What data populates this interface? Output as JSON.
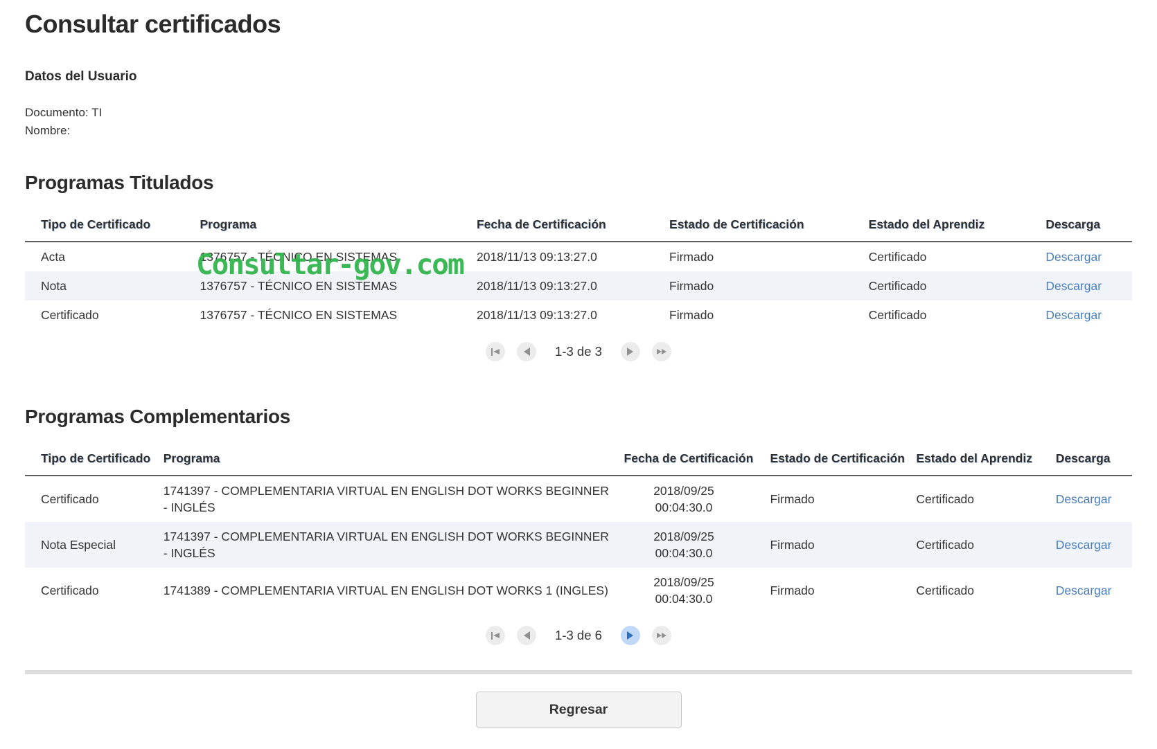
{
  "page": {
    "title": "Consultar certificados",
    "watermark": "Consultar-gov.com"
  },
  "user": {
    "section_title": "Datos del Usuario",
    "documento": "Documento: TI",
    "nombre": "Nombre:"
  },
  "titulados": {
    "section_title": "Programas Titulados",
    "headers": [
      "Tipo de Certificado",
      "Programa",
      "Fecha de Certificación",
      "Estado de Certificación",
      "Estado del Aprendiz",
      "Descarga"
    ],
    "rows": [
      {
        "tipo": "Acta",
        "programa": "1376757 - TÉCNICO EN SISTEMAS",
        "fecha": "2018/11/13 09:13:27.0",
        "estado_certificacion": "Firmado",
        "estado_aprendiz": "Certificado",
        "descarga": "Descargar"
      },
      {
        "tipo": "Nota",
        "programa": "1376757 - TÉCNICO EN SISTEMAS",
        "fecha": "2018/11/13 09:13:27.0",
        "estado_certificacion": "Firmado",
        "estado_aprendiz": "Certificado",
        "descarga": "Descargar"
      },
      {
        "tipo": "Certificado",
        "programa": "1376757 - TÉCNICO EN SISTEMAS",
        "fecha": "2018/11/13 09:13:27.0",
        "estado_certificacion": "Firmado",
        "estado_aprendiz": "Certificado",
        "descarga": "Descargar"
      }
    ],
    "pagination": {
      "label": "1-3 de 3"
    }
  },
  "complementarios": {
    "section_title": "Programas Complementarios",
    "headers": [
      "Tipo de Certificado",
      "Programa",
      "Fecha de Certificación",
      "Estado de Certificación",
      "Estado del Aprendiz",
      "Descarga"
    ],
    "rows": [
      {
        "tipo": "Certificado",
        "programa": "1741397 - COMPLEMENTARIA VIRTUAL EN ENGLISH DOT WORKS BEGINNER - INGLÉS",
        "fecha": "2018/09/25 00:04:30.0",
        "estado_certificacion": "Firmado",
        "estado_aprendiz": "Certificado",
        "descarga": "Descargar"
      },
      {
        "tipo": "Nota Especial",
        "programa": "1741397 - COMPLEMENTARIA VIRTUAL EN ENGLISH DOT WORKS BEGINNER - INGLÉS",
        "fecha": "2018/09/25 00:04:30.0",
        "estado_certificacion": "Firmado",
        "estado_aprendiz": "Certificado",
        "descarga": "Descargar"
      },
      {
        "tipo": "Certificado",
        "programa": "1741389 - COMPLEMENTARIA VIRTUAL EN ENGLISH DOT WORKS 1 (INGLES)",
        "fecha": "2018/09/25 00:04:30.0",
        "estado_certificacion": "Firmado",
        "estado_aprendiz": "Certificado",
        "descarga": "Descargar"
      }
    ],
    "pagination": {
      "label": "1-3 de 6"
    }
  },
  "footer": {
    "back_label": "Regresar"
  }
}
